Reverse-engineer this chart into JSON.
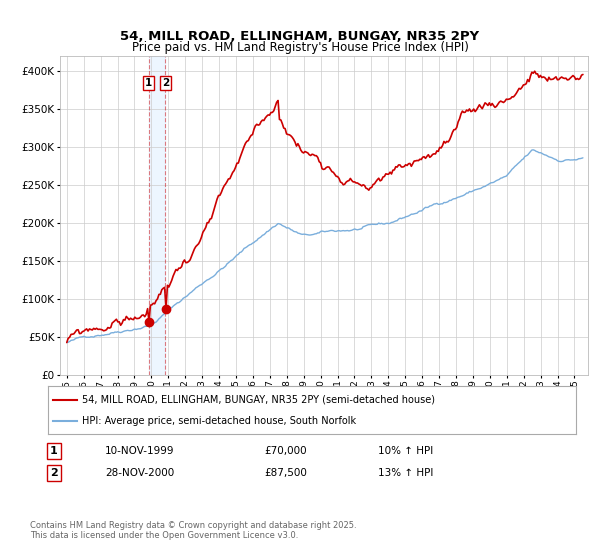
{
  "title": "54, MILL ROAD, ELLINGHAM, BUNGAY, NR35 2PY",
  "subtitle": "Price paid vs. HM Land Registry's House Price Index (HPI)",
  "legend_line1": "54, MILL ROAD, ELLINGHAM, BUNGAY, NR35 2PY (semi-detached house)",
  "legend_line2": "HPI: Average price, semi-detached house, South Norfolk",
  "transaction1_date": "10-NOV-1999",
  "transaction1_price": "£70,000",
  "transaction1_hpi": "10% ↑ HPI",
  "transaction2_date": "28-NOV-2000",
  "transaction2_price": "£87,500",
  "transaction2_hpi": "13% ↑ HPI",
  "footnote": "Contains HM Land Registry data © Crown copyright and database right 2025.\nThis data is licensed under the Open Government Licence v3.0.",
  "red_color": "#cc0000",
  "blue_color": "#7aaedc",
  "vline_color": "#cc0000",
  "box_color": "#ddeeff",
  "ylim_min": 0,
  "ylim_max": 420000,
  "xlim_min": 1994.6,
  "xlim_max": 2025.8
}
